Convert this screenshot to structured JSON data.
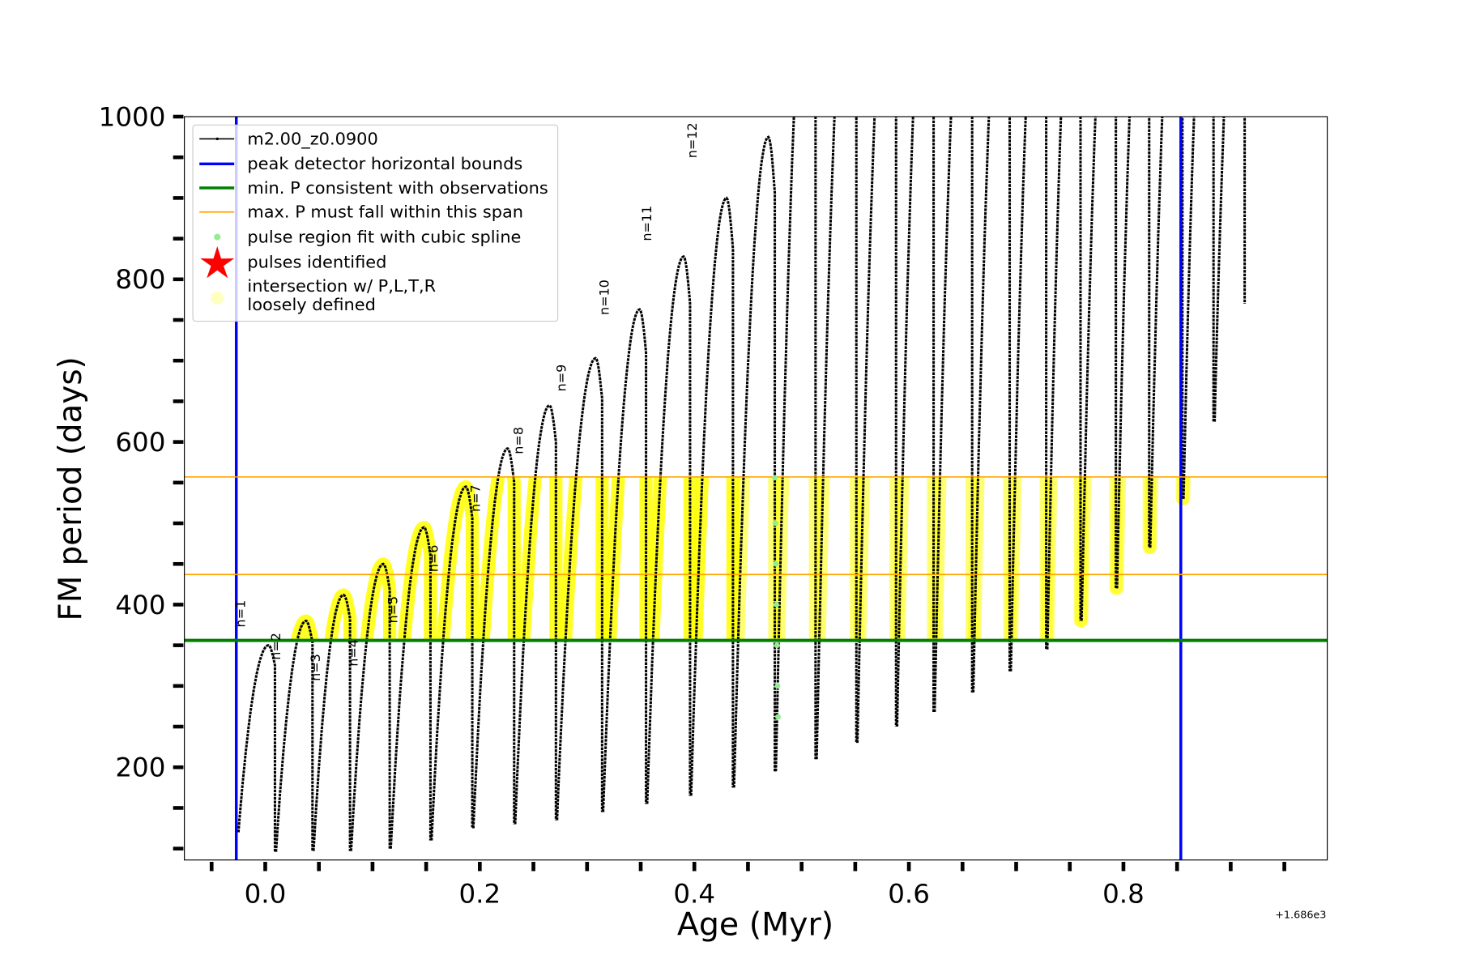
{
  "chart_data": {
    "type": "line",
    "xlabel": "Age (Myr)",
    "ylabel": "FM period (days)",
    "x_offset_text": "+1.686e3",
    "xlim": [
      -0.0754,
      0.99
    ],
    "ylim": [
      86,
      1000
    ],
    "x_ticks": [
      0.0,
      0.2,
      0.4,
      0.6,
      0.8
    ],
    "x_tick_labels": [
      "0.0",
      "0.2",
      "0.4",
      "0.6",
      "0.8"
    ],
    "y_ticks": [
      200,
      400,
      600,
      800,
      1000
    ],
    "y_tick_labels": [
      "200",
      "400",
      "600",
      "800",
      "1000"
    ],
    "grid": false,
    "legend_placement": "top-left",
    "legend": [
      {
        "label": "m2.00_z0.0900",
        "color": "#000000",
        "kind": "line-marker"
      },
      {
        "label": "peak detector horizontal bounds",
        "color": "#0000ff",
        "kind": "thick-line"
      },
      {
        "label": "min. P consistent with observations",
        "color": "#008000",
        "kind": "thick-line"
      },
      {
        "label": "max. P must fall within this span",
        "color": "#ffa500",
        "kind": "line"
      },
      {
        "label": "pulse region fit with cubic spline",
        "color": "#90ee90",
        "kind": "dot"
      },
      {
        "label": "pulses identified",
        "color": "#ff0000",
        "kind": "star"
      },
      {
        "label": "intersection w/ P,L,T,R",
        "label2": "loosely defined",
        "color": "#ffffc0",
        "kind": "circle"
      }
    ],
    "vertical_bounds": [
      -0.027,
      0.8535
    ],
    "min_period_line": 356,
    "max_period_span": [
      437,
      557
    ],
    "series": {
      "name": "m2.00_z0.0900",
      "start": [
        -0.025,
        120
      ],
      "drop_ages": [
        0.009,
        0.044,
        0.079,
        0.116,
        0.154,
        0.193,
        0.232,
        0.271,
        0.314,
        0.355,
        0.396,
        0.436,
        0.475,
        0.513,
        0.551,
        0.588,
        0.623,
        0.659,
        0.694,
        0.728,
        0.76,
        0.793,
        0.824,
        0.855,
        0.884,
        0.913
      ],
      "peak_periods": [
        350,
        380,
        412,
        450,
        495,
        545,
        592,
        645,
        703,
        763,
        828,
        900,
        975,
        1300,
        1300,
        1300,
        1300,
        1300,
        1300,
        1300,
        1300,
        1300,
        1300,
        1300,
        1300,
        1300
      ],
      "post_drop_minima": [
        96,
        97,
        97,
        100,
        110,
        125,
        130,
        135,
        145,
        155,
        165,
        175,
        195,
        210,
        230,
        250,
        268,
        292,
        318,
        345,
        380,
        420,
        470,
        530,
        625,
        770
      ]
    },
    "spline_points": {
      "age": [
        0.475,
        0.4755,
        0.476,
        0.4765,
        0.477,
        0.4775,
        0.478
      ],
      "period": [
        556,
        500,
        450,
        400,
        350,
        300,
        262
      ]
    },
    "pulse_labels": [
      {
        "text": "n=1",
        "age": -0.019,
        "period": 372
      },
      {
        "text": "n=2",
        "age": 0.014,
        "period": 332
      },
      {
        "text": "n=3",
        "age": 0.051,
        "period": 306
      },
      {
        "text": "n=4",
        "age": 0.086,
        "period": 324
      },
      {
        "text": "n=5",
        "age": 0.123,
        "period": 377
      },
      {
        "text": "n=6",
        "age": 0.161,
        "period": 440
      },
      {
        "text": "n=7",
        "age": 0.2,
        "period": 514
      },
      {
        "text": "n=8",
        "age": 0.24,
        "period": 585
      },
      {
        "text": "n=9",
        "age": 0.28,
        "period": 662
      },
      {
        "text": "n=10",
        "age": 0.32,
        "period": 756
      },
      {
        "text": "n=11",
        "age": 0.36,
        "period": 847
      },
      {
        "text": "n=12",
        "age": 0.402,
        "period": 949
      }
    ]
  }
}
